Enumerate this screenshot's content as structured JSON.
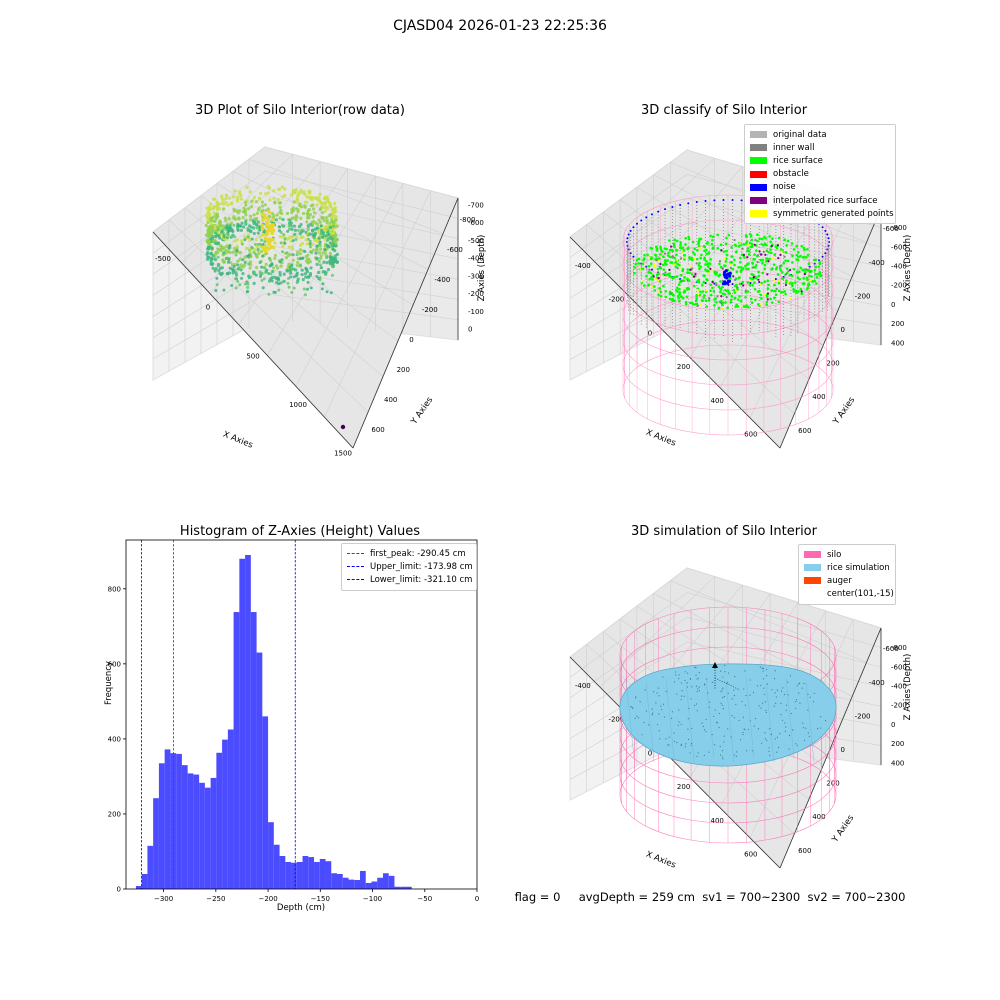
{
  "suptitle": "CJASD04 2026-01-23 22:25:36",
  "panels": {
    "raw": {
      "title": "3D Plot of Silo Interior(row data)",
      "xlabel": "X Axies",
      "ylabel": "Y Axies",
      "zlabel": "Z Axies (Depth)",
      "xticks": [
        "-500",
        "0",
        "500",
        "1000",
        "1500"
      ],
      "yticks": [
        "600",
        "400",
        "200",
        "0",
        "-200",
        "-400",
        "-600",
        "-800"
      ],
      "zticks": [
        "0",
        "-100",
        "-200",
        "-300",
        "-400",
        "-500",
        "-600",
        "-700"
      ]
    },
    "classify": {
      "title": "3D classify of Silo Interior",
      "xlabel": "X Axies",
      "ylabel": "Y Axies",
      "zlabel": "Z Axies (Depth)",
      "xticks": [
        "-400",
        "-200",
        "0",
        "200",
        "400",
        "600"
      ],
      "yticks": [
        "600",
        "400",
        "200",
        "0",
        "-200",
        "-400",
        "-600"
      ],
      "zticks": [
        "400",
        "200",
        "0",
        "-200",
        "-400",
        "-600",
        "-800"
      ],
      "legend": [
        {
          "label": "original data",
          "color": "#b3b3b3"
        },
        {
          "label": "inner wall",
          "color": "#808080"
        },
        {
          "label": "rice surface",
          "color": "#00ff00"
        },
        {
          "label": "obstacle",
          "color": "#ff0000"
        },
        {
          "label": "noise",
          "color": "#0000ff"
        },
        {
          "label": "interpolated rice surface",
          "color": "#800080"
        },
        {
          "label": "symmetric generated points",
          "color": "#ffff00"
        }
      ]
    },
    "simulation": {
      "title": "3D simulation of Silo Interior",
      "xlabel": "X Axies",
      "ylabel": "Y Axies",
      "zlabel": "Z Axies (Depth)",
      "xticks": [
        "-400",
        "-200",
        "0",
        "200",
        "400",
        "600"
      ],
      "yticks": [
        "600",
        "400",
        "200",
        "0",
        "-200",
        "-400",
        "-600"
      ],
      "zticks": [
        "400",
        "200",
        "0",
        "-200",
        "-400",
        "-600",
        "-800"
      ],
      "legend": [
        {
          "label": "silo",
          "color": "#ff69b4"
        },
        {
          "label": "rice simulation",
          "color": "#87ceeb"
        },
        {
          "label": "auger",
          "color": "#ff4500"
        },
        {
          "label": "center(101,-15)",
          "color": ""
        }
      ]
    }
  },
  "chart_data": {
    "type": "bar",
    "title": "Histogram of Z-Axies (Height) Values",
    "xlabel": "Depth (cm)",
    "ylabel": "Frequency",
    "xlim": [
      -336,
      0
    ],
    "ylim": [
      0,
      930
    ],
    "xticks": [
      -300,
      -250,
      -200,
      -150,
      -100,
      -50,
      0
    ],
    "yticks": [
      0,
      200,
      400,
      600,
      800
    ],
    "bin_width": 5.5,
    "bins_start": -326.5,
    "values": [
      8,
      40,
      115,
      242,
      335,
      372,
      362,
      360,
      330,
      308,
      305,
      283,
      270,
      296,
      363,
      398,
      425,
      738,
      880,
      890,
      738,
      630,
      460,
      178,
      118,
      88,
      72,
      70,
      72,
      88,
      85,
      72,
      80,
      74,
      42,
      40,
      30,
      25,
      24,
      48,
      16,
      20,
      30,
      42,
      35,
      6,
      6,
      6
    ],
    "vlines": [
      {
        "label": "first_peak: -290.45 cm",
        "x": -290.45,
        "color": "#ff0000"
      },
      {
        "label": "Upper_limit: -173.98 cm",
        "x": -173.98,
        "color": "#0000ff"
      },
      {
        "label": "Lower_limit: -321.10 cm",
        "x": -321.1,
        "color": "#0000ff"
      }
    ],
    "bar_color": "#4b4bff"
  },
  "footer": {
    "flag": "flag = 0",
    "avg": "avgDepth = 259 cm",
    "sv1": "sv1 = 700~2300",
    "sv2": "sv2 = 700~2300"
  }
}
